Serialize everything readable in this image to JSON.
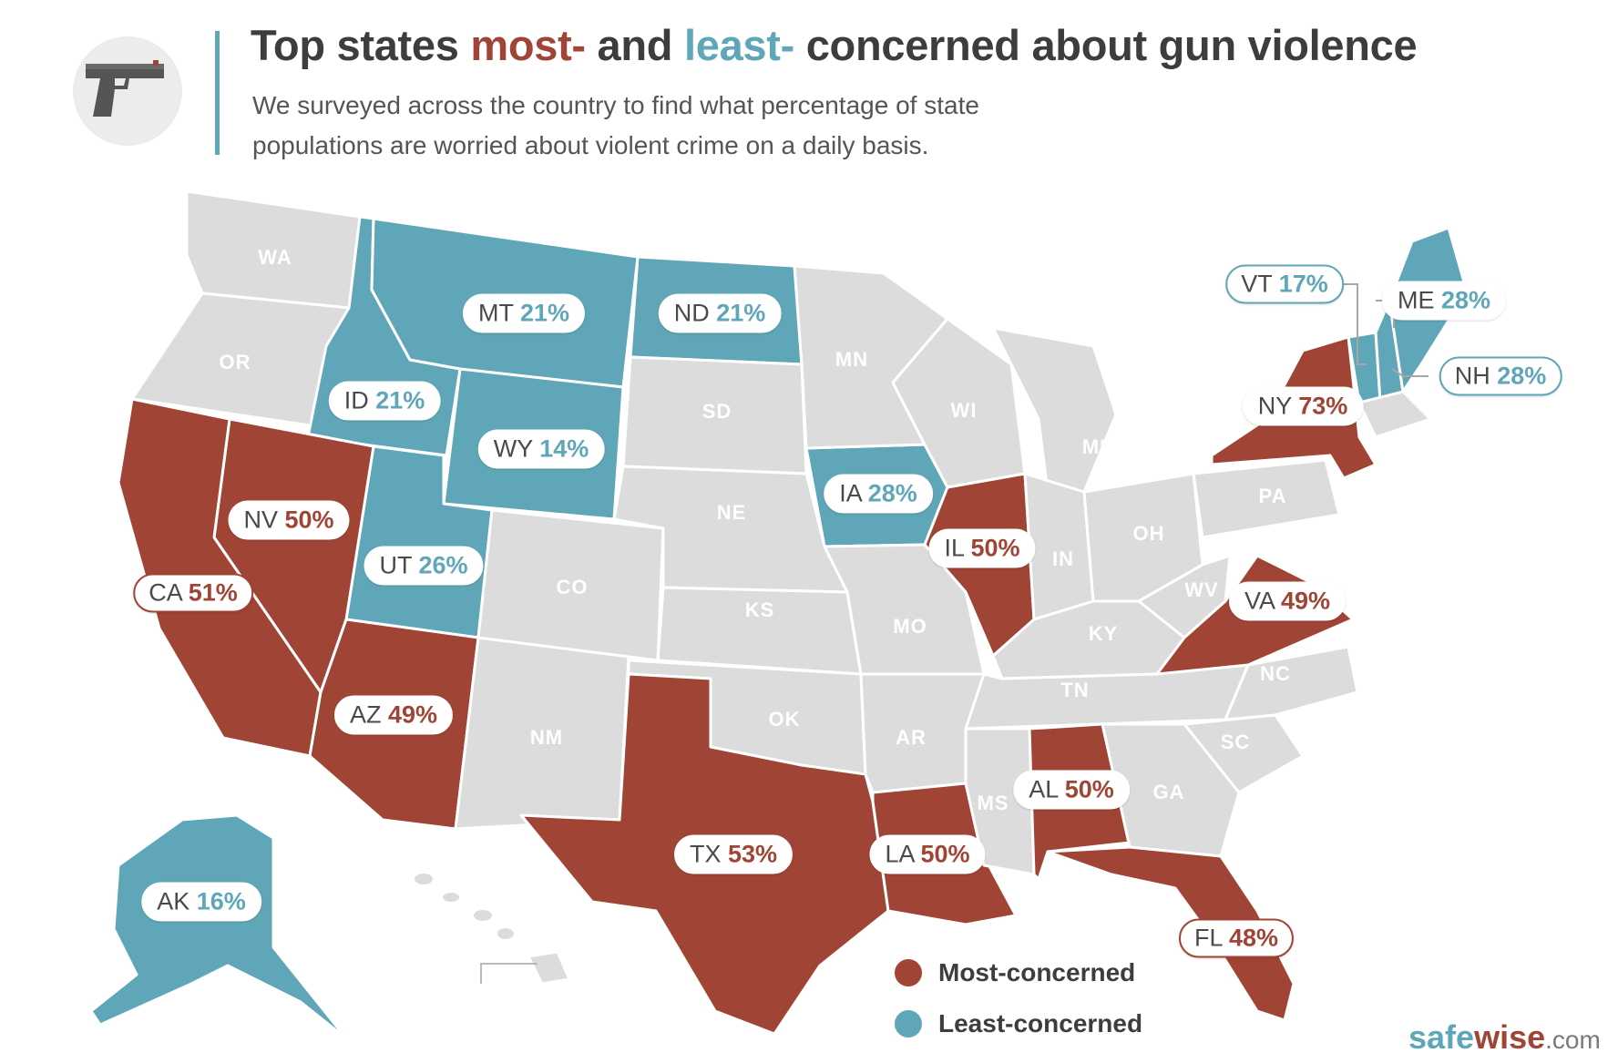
{
  "header": {
    "icon": "gun-icon",
    "title_before": "Top states ",
    "title_most": "most-",
    "title_middle": " and ",
    "title_least": "least-",
    "title_after": " concerned about gun violence",
    "subtitle_line1": "We surveyed across the country to find what percentage of state",
    "subtitle_line2": "populations are worried about violent crime on a daily basis."
  },
  "colors": {
    "most": "#a04536",
    "least": "#5fa7b8",
    "neutral": "#dcdcdc",
    "title_text": "#3d3d3d"
  },
  "states_most": [
    {
      "code": "NY",
      "percent": "73%"
    },
    {
      "code": "CA",
      "percent": "51%"
    },
    {
      "code": "NV",
      "percent": "50%"
    },
    {
      "code": "AZ",
      "percent": "49%"
    },
    {
      "code": "TX",
      "percent": "53%"
    },
    {
      "code": "LA",
      "percent": "50%"
    },
    {
      "code": "IL",
      "percent": "50%"
    },
    {
      "code": "AL",
      "percent": "50%"
    },
    {
      "code": "FL",
      "percent": "48%"
    },
    {
      "code": "VA",
      "percent": "49%"
    }
  ],
  "states_least": [
    {
      "code": "MT",
      "percent": "21%"
    },
    {
      "code": "ND",
      "percent": "21%"
    },
    {
      "code": "ID",
      "percent": "21%"
    },
    {
      "code": "WY",
      "percent": "14%"
    },
    {
      "code": "UT",
      "percent": "26%"
    },
    {
      "code": "IA",
      "percent": "28%"
    },
    {
      "code": "VT",
      "percent": "17%"
    },
    {
      "code": "ME",
      "percent": "28%"
    },
    {
      "code": "NH",
      "percent": "28%"
    },
    {
      "code": "AK",
      "percent": "16%"
    }
  ],
  "gray_states": [
    "WA",
    "OR",
    "SD",
    "MN",
    "WI",
    "MI",
    "NE",
    "CO",
    "KS",
    "MO",
    "IN",
    "OH",
    "PA",
    "WV",
    "KY",
    "TN",
    "NC",
    "SC",
    "GA",
    "MS",
    "AR",
    "OK",
    "NM",
    "HI"
  ],
  "legend": {
    "most_label": "Most-concerned",
    "least_label": "Least-concerned"
  },
  "brand": {
    "part1": "safe",
    "part2": "wise",
    "part3": ".com"
  }
}
